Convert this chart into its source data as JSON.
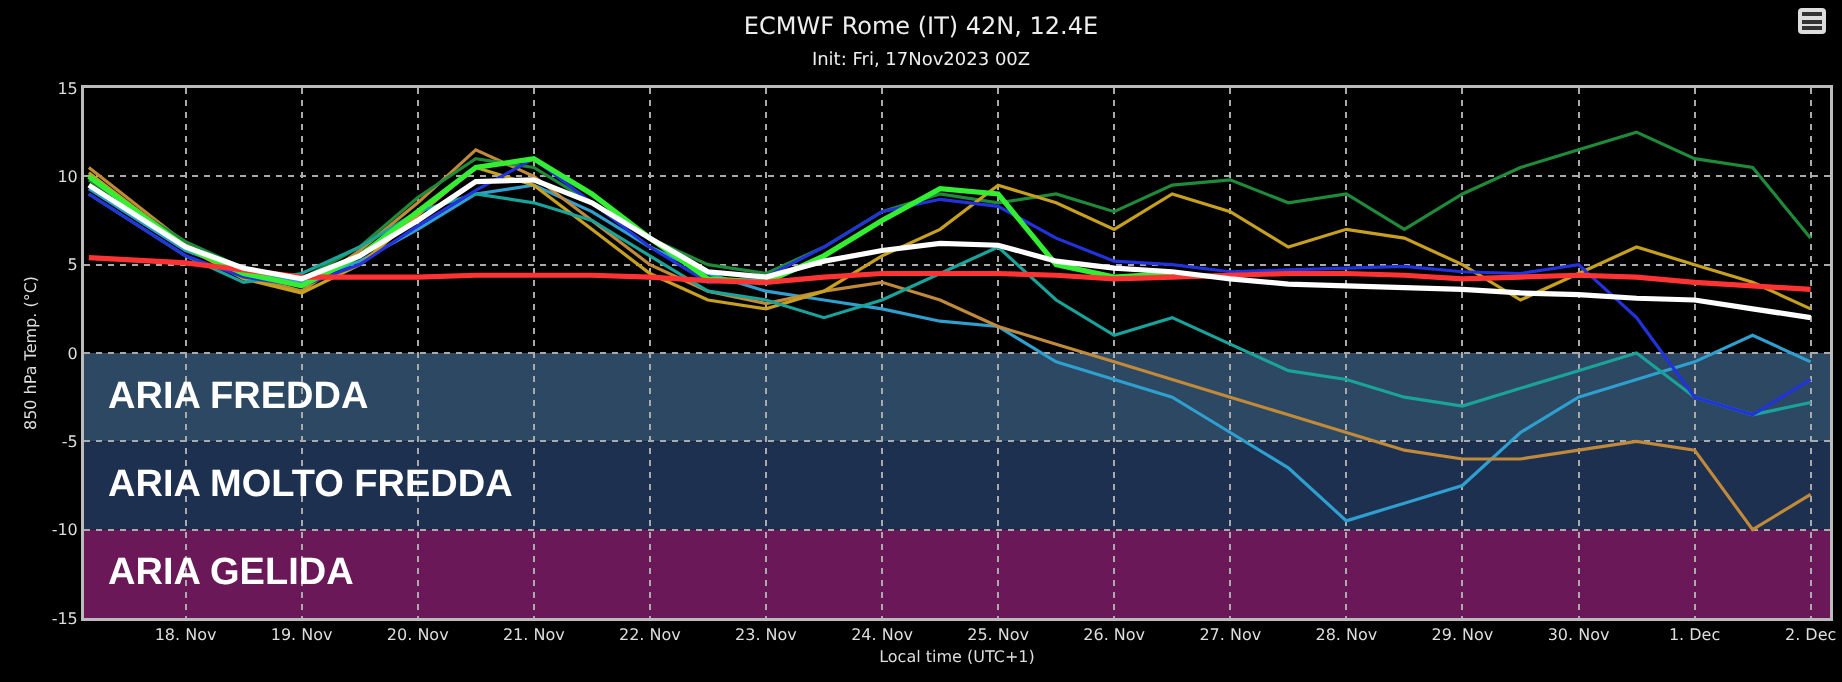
{
  "chart_data": {
    "type": "line",
    "title": "ECMWF Rome (IT) 42N, 12.4E",
    "subtitle": "Init: Fri, 17Nov2023 00Z",
    "xlabel": "Local time (UTC+1)",
    "ylabel": "850 hPa Temp. (°C)",
    "x": [
      "2023-11-17T04:00",
      "2023-11-18T00:00",
      "2023-11-18T12:00",
      "2023-11-19T00:00",
      "2023-11-19T12:00",
      "2023-11-20T00:00",
      "2023-11-20T12:00",
      "2023-11-21T00:00",
      "2023-11-21T12:00",
      "2023-11-22T00:00",
      "2023-11-22T12:00",
      "2023-11-23T00:00",
      "2023-11-23T12:00",
      "2023-11-24T00:00",
      "2023-11-24T12:00",
      "2023-11-25T00:00",
      "2023-11-25T12:00",
      "2023-11-26T00:00",
      "2023-11-26T12:00",
      "2023-11-27T00:00",
      "2023-11-27T12:00",
      "2023-11-28T00:00",
      "2023-11-28T12:00",
      "2023-11-29T00:00",
      "2023-11-29T12:00",
      "2023-11-30T00:00",
      "2023-11-30T12:00",
      "2023-12-01T00:00",
      "2023-12-01T12:00",
      "2023-12-02T00:00"
    ],
    "series": [
      {
        "color": "#2f9fd0",
        "values": [
          9.3,
          5.8,
          4.6,
          4.0,
          5.2,
          7.0,
          9.0,
          9.5,
          8.0,
          6.0,
          4.5,
          3.5,
          3.0,
          2.5,
          1.8,
          1.5,
          -0.5,
          -1.5,
          -2.5,
          -4.5,
          -6.5,
          -9.5,
          -8.5,
          -7.5,
          -4.5,
          -2.5,
          -1.5,
          -0.5,
          1.0,
          -0.5
        ]
      },
      {
        "color": "#c08a3a",
        "values": [
          10.5,
          6.2,
          4.4,
          3.5,
          5.8,
          8.5,
          11.5,
          10.0,
          7.5,
          5.0,
          3.5,
          2.8,
          3.5,
          4.0,
          3.0,
          1.5,
          0.5,
          -0.5,
          -1.5,
          -2.5,
          -3.5,
          -4.5,
          -5.5,
          -6.0,
          -6.0,
          -5.5,
          -5.0,
          -5.5,
          -10.0,
          -8.0
        ]
      },
      {
        "color": "#1f8a3a",
        "values": [
          9.8,
          6.3,
          4.8,
          4.2,
          6.0,
          8.8,
          11.0,
          10.5,
          8.5,
          6.5,
          5.0,
          4.5,
          6.0,
          8.0,
          9.0,
          8.5,
          9.0,
          8.0,
          9.5,
          9.8,
          8.5,
          9.0,
          7.0,
          9.0,
          10.5,
          11.5,
          12.5,
          11.0,
          10.5,
          6.5
        ]
      },
      {
        "color": "#c8a020",
        "values": [
          10.2,
          6.0,
          4.2,
          3.4,
          5.0,
          7.8,
          10.5,
          9.5,
          7.0,
          4.5,
          3.0,
          2.5,
          3.5,
          5.5,
          7.0,
          9.5,
          8.5,
          7.0,
          9.0,
          8.0,
          6.0,
          7.0,
          6.5,
          5.0,
          3.0,
          4.5,
          6.0,
          5.0,
          4.0,
          2.5
        ]
      },
      {
        "color": "#1aa39a",
        "values": [
          9.0,
          5.5,
          4.0,
          4.5,
          6.0,
          8.0,
          9.0,
          8.5,
          7.5,
          5.5,
          3.5,
          3.0,
          2.0,
          3.0,
          4.5,
          6.0,
          3.0,
          1.0,
          2.0,
          0.5,
          -1.0,
          -1.5,
          -2.5,
          -3.0,
          -2.0,
          -1.0,
          0.0,
          -2.5,
          -3.5,
          -2.8
        ]
      },
      {
        "color": "#2233dd",
        "values": [
          9.0,
          5.5,
          4.3,
          3.8,
          5.0,
          7.2,
          9.2,
          11.0,
          8.5,
          6.0,
          4.0,
          4.3,
          6.0,
          8.0,
          8.7,
          8.3,
          6.5,
          5.2,
          5.0,
          4.6,
          4.7,
          4.8,
          4.9,
          4.6,
          4.5,
          5.0,
          2.0,
          -2.5,
          -3.5,
          -1.5
        ]
      },
      {
        "color": "#33ee33",
        "values": [
          10.0,
          6.0,
          4.5,
          3.8,
          5.5,
          8.0,
          10.5,
          11.0,
          9.0,
          6.5,
          4.2,
          4.0,
          5.5,
          7.5,
          9.3,
          9.0,
          5.0,
          4.3,
          4.5,
          null,
          null,
          null,
          null,
          null,
          null,
          null,
          null,
          null,
          null,
          null
        ]
      },
      {
        "color": "#ff3333",
        "values": [
          5.4,
          5.1,
          4.7,
          4.3,
          4.3,
          4.3,
          4.4,
          4.4,
          4.4,
          4.3,
          4.1,
          4.0,
          4.3,
          4.5,
          4.5,
          4.5,
          4.4,
          4.2,
          4.3,
          4.4,
          4.5,
          4.5,
          4.4,
          4.2,
          4.3,
          4.4,
          4.3,
          4.0,
          3.8,
          3.6
        ]
      },
      {
        "color": "#ffffff",
        "values": [
          9.5,
          6.0,
          4.8,
          4.2,
          5.5,
          7.5,
          9.7,
          9.8,
          8.5,
          6.5,
          4.6,
          4.3,
          5.2,
          5.8,
          6.2,
          6.1,
          5.2,
          4.8,
          4.6,
          4.2,
          3.9,
          3.8,
          3.7,
          3.6,
          3.4,
          3.3,
          3.1,
          3.0,
          2.5,
          2.0
        ]
      }
    ],
    "xlim": [
      "2023-11-17T03:00",
      "2023-12-02T04:00"
    ],
    "xticks": [
      {
        "value": "2023-11-18",
        "label": "18. Nov"
      },
      {
        "value": "2023-11-19",
        "label": "19. Nov"
      },
      {
        "value": "2023-11-20",
        "label": "20. Nov"
      },
      {
        "value": "2023-11-21",
        "label": "21. Nov"
      },
      {
        "value": "2023-11-22",
        "label": "22. Nov"
      },
      {
        "value": "2023-11-23",
        "label": "23. Nov"
      },
      {
        "value": "2023-11-24",
        "label": "24. Nov"
      },
      {
        "value": "2023-11-25",
        "label": "25. Nov"
      },
      {
        "value": "2023-11-26",
        "label": "26. Nov"
      },
      {
        "value": "2023-11-27",
        "label": "27. Nov"
      },
      {
        "value": "2023-11-28",
        "label": "28. Nov"
      },
      {
        "value": "2023-11-29",
        "label": "29. Nov"
      },
      {
        "value": "2023-11-30",
        "label": "30. Nov"
      },
      {
        "value": "2023-12-01",
        "label": "1. Dec"
      },
      {
        "value": "2023-12-02",
        "label": "2. Dec"
      }
    ],
    "ylim": [
      -15,
      15
    ],
    "yticks": [
      -15,
      -10,
      -5,
      0,
      5,
      10,
      15
    ],
    "bands": [
      {
        "axis": "y",
        "from": 0,
        "to": -5,
        "label": "ARIA FREDDA",
        "color": "#2c4862"
      },
      {
        "axis": "y",
        "from": -5,
        "to": -10,
        "label": "ARIA MOLTO FREDDA",
        "color": "#1d3050"
      },
      {
        "axis": "y",
        "from": -10,
        "to": -15,
        "label": "ARIA GELIDA",
        "color": "#6a1858"
      }
    ],
    "grid": true,
    "marker": "none",
    "line_style": "solid"
  }
}
